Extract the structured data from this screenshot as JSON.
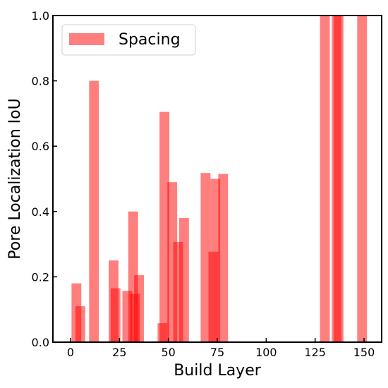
{
  "chart_data": {
    "type": "bar",
    "title": "",
    "xlabel": "Build Layer",
    "ylabel": "Pore Localization IoU",
    "xlim": [
      -9,
      159
    ],
    "ylim": [
      0,
      1
    ],
    "xticks": [
      0,
      25,
      50,
      75,
      100,
      125,
      150
    ],
    "xtick_labels": [
      "0",
      "25",
      "50",
      "75",
      "100",
      "125",
      "150"
    ],
    "yticks": [
      0.0,
      0.2,
      0.4,
      0.6,
      0.8,
      1.0
    ],
    "ytick_labels": [
      "0.0",
      "0.2",
      "0.4",
      "0.6",
      "0.8",
      "1.0"
    ],
    "grid": false,
    "legend_position": "top-left",
    "bar_width": 5,
    "bar_color": "#ff0000",
    "bar_alpha": 0.5,
    "series": [
      {
        "name": "Spacing",
        "x": [
          3,
          5,
          12,
          22,
          23,
          29,
          32,
          33,
          35,
          47,
          48,
          52,
          55,
          58,
          69,
          73,
          74,
          78,
          130,
          136,
          137,
          149
        ],
        "values": [
          0.18,
          0.11,
          0.8,
          0.25,
          0.165,
          0.157,
          0.4,
          0.148,
          0.205,
          0.058,
          0.705,
          0.49,
          0.307,
          0.38,
          0.518,
          0.277,
          0.5,
          0.515,
          1.0,
          1.0,
          1.0,
          1.0
        ]
      }
    ]
  }
}
